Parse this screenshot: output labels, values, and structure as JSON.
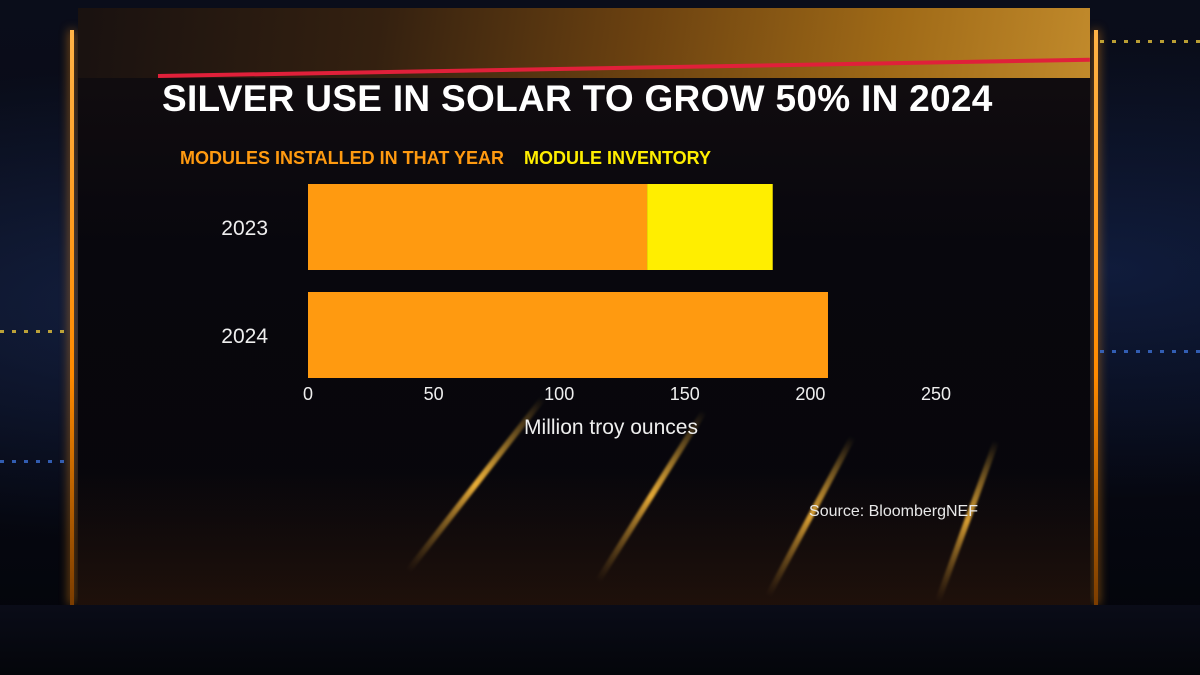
{
  "colors": {
    "installed": "#ff9a10",
    "inventory": "#ffee00",
    "title": "#ffffff",
    "axis_text": "#eeeeee",
    "accent_rule": "#e0203a"
  },
  "chart_data": {
    "type": "bar",
    "orientation": "horizontal",
    "stacked": true,
    "title": "SILVER USE IN SOLAR TO GROW 50% IN 2024",
    "categories": [
      "2023",
      "2024"
    ],
    "series": [
      {
        "name": "MODULES INSTALLED IN THAT YEAR",
        "values": [
          135,
          207
        ]
      },
      {
        "name": "MODULE INVENTORY",
        "values": [
          50,
          0
        ]
      }
    ],
    "xlabel": "Million troy ounces",
    "ylabel": "",
    "xlim": [
      0,
      250
    ],
    "xticks": [
      "0",
      "50",
      "100",
      "150",
      "200",
      "250"
    ],
    "grid": false,
    "legend_position": "top-left",
    "source": "Source: BloombergNEF"
  }
}
